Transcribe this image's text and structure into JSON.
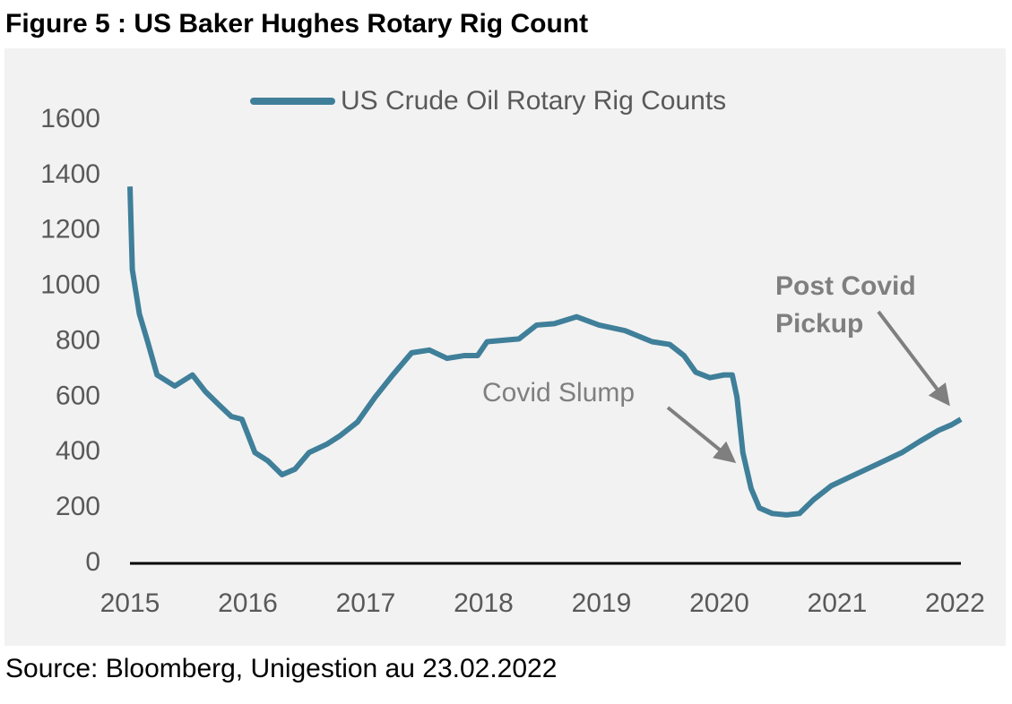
{
  "chart_data": {
    "type": "line",
    "title": "Figure 5 : US Baker Hughes Rotary Rig Count",
    "source": "Source: Bloomberg, Unigestion au 23.02.2022",
    "x": [
      2015,
      2015.02,
      2015.08,
      2015.15,
      2015.23,
      2015.38,
      2015.53,
      2015.64,
      2015.76,
      2015.86,
      2015.95,
      2016.06,
      2016.17,
      2016.29,
      2016.4,
      2016.52,
      2016.67,
      2016.78,
      2016.93,
      2017.08,
      2017.23,
      2017.39,
      2017.54,
      2017.69,
      2017.84,
      2017.95,
      2018.03,
      2018.3,
      2018.45,
      2018.6,
      2018.79,
      2018.98,
      2019.2,
      2019.43,
      2019.58,
      2019.7,
      2019.8,
      2019.92,
      2020.04,
      2020.11,
      2020.15,
      2020.2,
      2020.27,
      2020.34,
      2020.45,
      2020.57,
      2020.68,
      2020.8,
      2020.95,
      2021.1,
      2021.25,
      2021.4,
      2021.55,
      2021.7,
      2021.86,
      2021.97,
      2022.05
    ],
    "series": [
      {
        "name": "US Crude Oil Rotary Rig Counts",
        "color": "#3f7f99",
        "values": [
          1360,
          1060,
          900,
          800,
          680,
          640,
          680,
          620,
          570,
          530,
          520,
          400,
          370,
          320,
          340,
          400,
          430,
          460,
          510,
          600,
          680,
          760,
          770,
          740,
          750,
          750,
          800,
          810,
          860,
          865,
          890,
          860,
          840,
          800,
          790,
          750,
          690,
          670,
          680,
          680,
          600,
          400,
          270,
          200,
          180,
          175,
          180,
          230,
          280,
          310,
          340,
          370,
          400,
          440,
          480,
          500,
          520
        ]
      }
    ],
    "xlim": [
      2015,
      2022.05
    ],
    "xticks": [
      2015,
      2016,
      2017,
      2018,
      2019,
      2020,
      2021,
      2022
    ],
    "ylim": [
      0,
      1600
    ],
    "yticks": [
      0,
      200,
      400,
      600,
      800,
      1000,
      1200,
      1400,
      1600
    ],
    "annotations": [
      {
        "text": [
          "Covid Slump"
        ]
      },
      {
        "text": [
          "Post Covid",
          "Pickup"
        ]
      }
    ]
  }
}
